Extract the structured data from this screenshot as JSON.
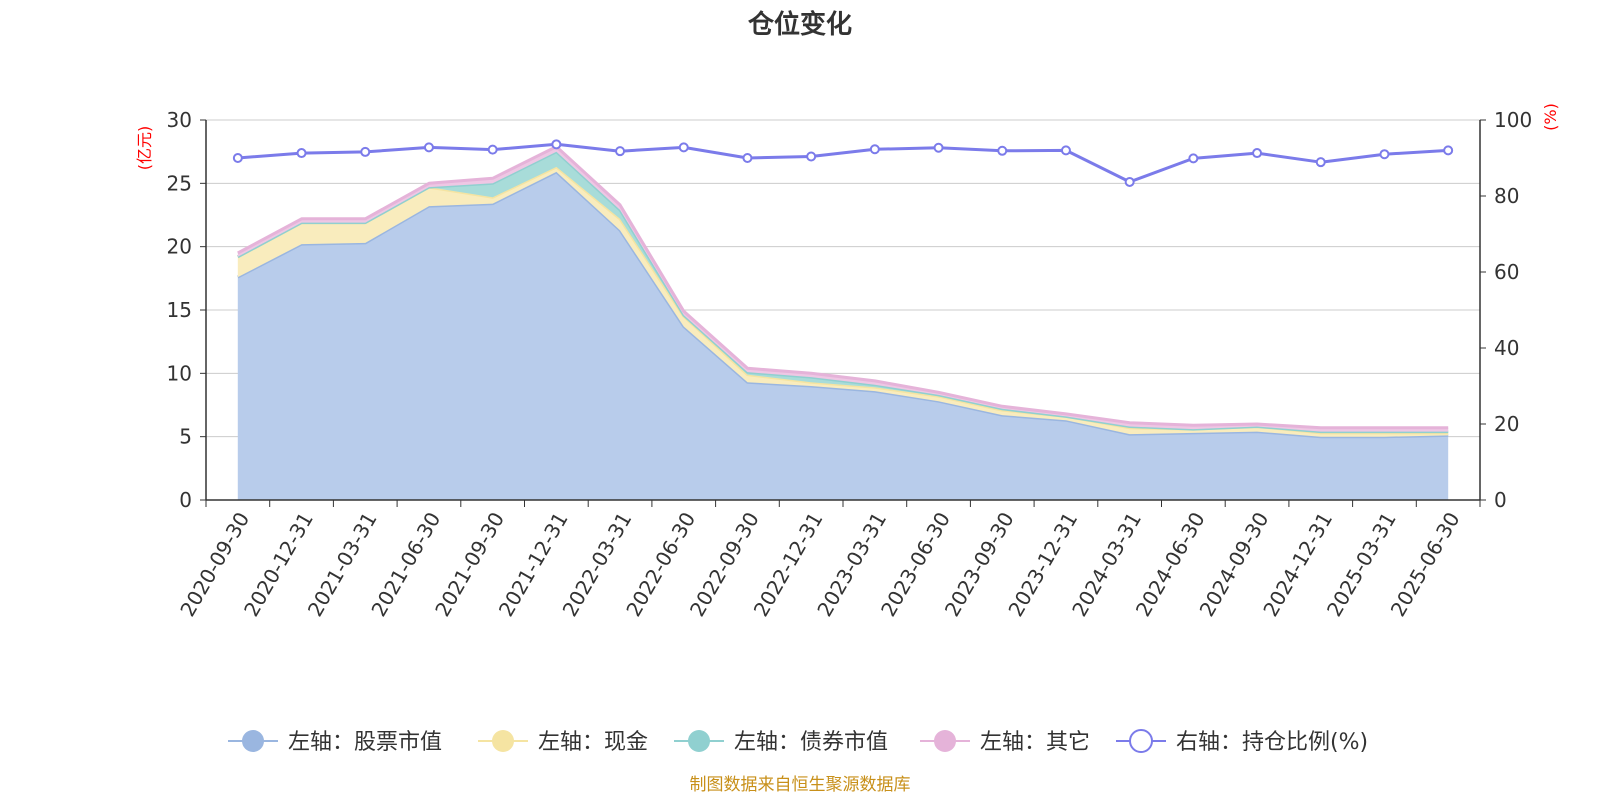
{
  "chart_data": {
    "type": "area",
    "title": "仓位变化",
    "left_unit": "(亿元)",
    "right_unit": "(%)",
    "source": "制图数据来自恒生聚源数据库",
    "x": [
      "2020-09-30",
      "2020-12-31",
      "2021-03-31",
      "2021-06-30",
      "2021-09-30",
      "2021-12-31",
      "2022-03-31",
      "2022-06-30",
      "2022-09-30",
      "2022-12-31",
      "2023-03-31",
      "2023-06-30",
      "2023-09-30",
      "2023-12-31",
      "2024-03-31",
      "2024-06-30",
      "2024-09-30",
      "2024-12-31",
      "2025-03-31",
      "2025-06-30"
    ],
    "ylim_left": [
      0,
      30
    ],
    "yticks_left": [
      0,
      5,
      10,
      15,
      20,
      25,
      30
    ],
    "ylim_right": [
      0,
      100
    ],
    "yticks_right": [
      0,
      20,
      40,
      60,
      80,
      100
    ],
    "grid": true,
    "legend_position": "bottom",
    "series": [
      {
        "name": "左轴：股票市值",
        "axis": "left",
        "stack": true,
        "color": "#9ab6e0",
        "fill": "#b8cceb",
        "values": [
          17.6,
          20.2,
          20.3,
          23.2,
          23.4,
          25.9,
          21.3,
          13.7,
          9.3,
          9.0,
          8.6,
          7.8,
          6.7,
          6.3,
          5.2,
          5.3,
          5.4,
          5.0,
          5.0,
          5.1
        ]
      },
      {
        "name": "左轴：现金",
        "axis": "left",
        "stack": true,
        "color": "#f5e4a2",
        "fill": "#f9ecbd",
        "values": [
          1.6,
          1.7,
          1.6,
          1.5,
          0.5,
          0.4,
          0.9,
          0.8,
          0.6,
          0.3,
          0.3,
          0.4,
          0.4,
          0.3,
          0.5,
          0.3,
          0.4,
          0.3,
          0.3,
          0.2
        ]
      },
      {
        "name": "左轴：债券市值",
        "axis": "left",
        "stack": true,
        "color": "#90d0d0",
        "fill": "#a8dcd9",
        "values": [
          0.0,
          0.0,
          0.0,
          0.0,
          1.1,
          1.2,
          0.7,
          0.1,
          0.2,
          0.4,
          0.2,
          0.1,
          0.1,
          0.0,
          0.1,
          0.0,
          0.0,
          0.1,
          0.1,
          0.1
        ]
      },
      {
        "name": "左轴：其它",
        "axis": "left",
        "stack": true,
        "color": "#e5b3d9",
        "fill": "#eec7e4",
        "values": [
          0.3,
          0.3,
          0.3,
          0.3,
          0.4,
          0.4,
          0.4,
          0.3,
          0.3,
          0.3,
          0.3,
          0.2,
          0.2,
          0.2,
          0.3,
          0.3,
          0.2,
          0.3,
          0.3,
          0.3
        ]
      },
      {
        "name": "右轴：持仓比例(%)",
        "axis": "right",
        "type": "line",
        "color": "#7b7bea",
        "values": [
          90.0,
          91.3,
          91.6,
          92.8,
          92.2,
          93.6,
          91.8,
          92.8,
          90.0,
          90.4,
          92.3,
          92.7,
          91.9,
          92.0,
          83.7,
          89.9,
          91.3,
          88.9,
          91.0,
          92.0
        ]
      }
    ]
  }
}
